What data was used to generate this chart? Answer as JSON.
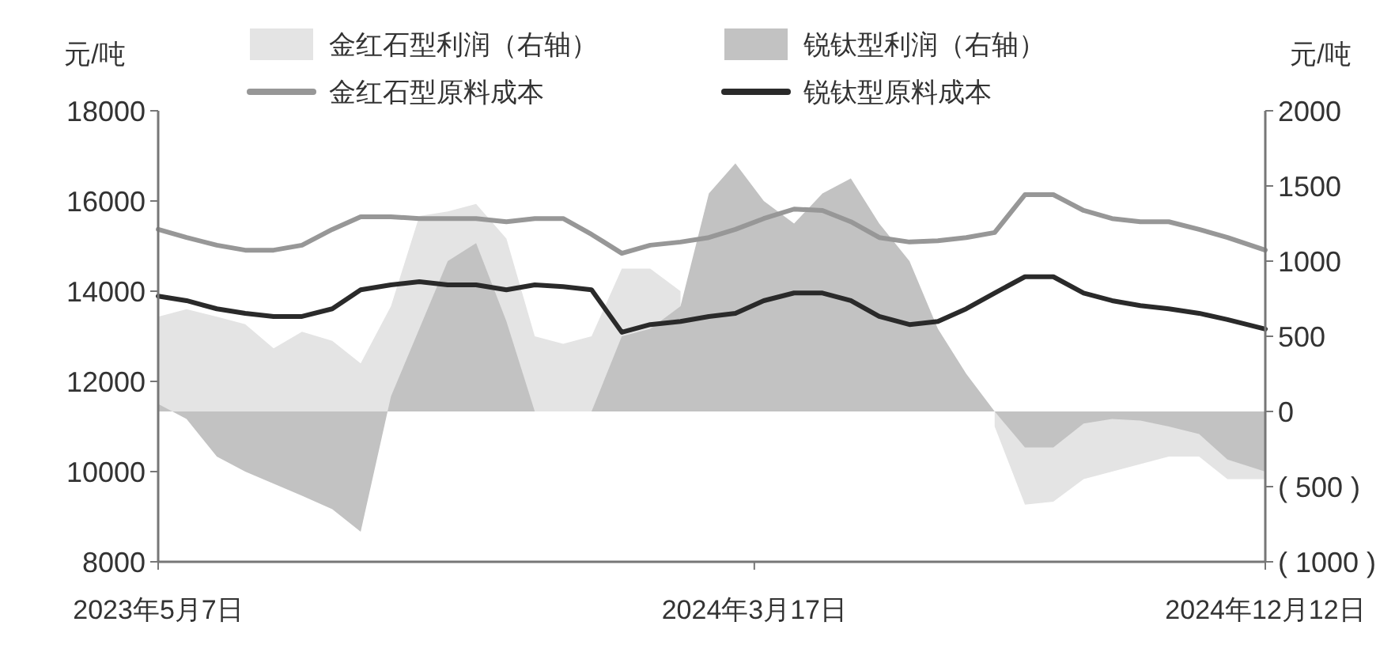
{
  "chart_data": {
    "type": "line",
    "ylabel": "元/吨",
    "y2label": "元/吨",
    "x": [
      "2023-05-07",
      "2023-05-22",
      "2023-06-07",
      "2023-06-22",
      "2023-07-07",
      "2023-07-22",
      "2023-08-07",
      "2023-08-22",
      "2023-09-07",
      "2023-09-22",
      "2023-10-07",
      "2023-10-22",
      "2023-11-07",
      "2023-11-22",
      "2023-12-07",
      "2023-12-22",
      "2024-01-07",
      "2024-01-22",
      "2024-02-07",
      "2024-02-22",
      "2024-03-07",
      "2024-03-22",
      "2024-04-07",
      "2024-04-22",
      "2024-05-07",
      "2024-05-22",
      "2024-06-07",
      "2024-06-22",
      "2024-07-07",
      "2024-07-22",
      "2024-08-07",
      "2024-08-22",
      "2024-09-07",
      "2024-09-22",
      "2024-10-07",
      "2024-10-22",
      "2024-11-07",
      "2024-11-22",
      "2024-12-12"
    ],
    "series": [
      {
        "name": "金红石型利润（右轴）",
        "type": "area",
        "axis": "y2",
        "color": "#e4e4e4",
        "values": [
          630,
          680,
          630,
          580,
          420,
          530,
          470,
          320,
          700,
          1300,
          1330,
          1380,
          1150,
          500,
          450,
          500,
          950,
          950,
          800,
          null,
          null,
          null,
          null,
          null,
          null,
          null,
          null,
          null,
          null,
          -100,
          -620,
          -600,
          -450,
          -400,
          -350,
          -300,
          -300,
          -450,
          -450
        ]
      },
      {
        "name": "锐钛型利润（右轴）",
        "type": "area",
        "axis": "y2",
        "color": "#c2c2c2",
        "values": [
          50,
          -50,
          -300,
          -400,
          -480,
          -560,
          -650,
          -800,
          100,
          550,
          1000,
          1120,
          600,
          0,
          0,
          0,
          500,
          550,
          700,
          1450,
          1650,
          1400,
          1250,
          1450,
          1550,
          1250,
          1000,
          550,
          250,
          0,
          -240,
          -240,
          -80,
          -50,
          -60,
          -100,
          -150,
          -320,
          -400
        ]
      },
      {
        "name": "金红石型原料成本",
        "color": "#979797",
        "values": [
          15370,
          15190,
          15020,
          14910,
          14910,
          15020,
          15370,
          15650,
          15650,
          15610,
          15610,
          15610,
          15540,
          15610,
          15610,
          15260,
          14840,
          15020,
          15090,
          15190,
          15370,
          15610,
          15820,
          15790,
          15540,
          15190,
          15090,
          15120,
          15190,
          15300,
          16140,
          16140,
          15790,
          15610,
          15540,
          15540,
          15370,
          15190,
          14910
        ]
      },
      {
        "name": "锐钛型原料成本",
        "color": "#2a2a2a",
        "values": [
          13890,
          13790,
          13610,
          13510,
          13440,
          13440,
          13610,
          14030,
          14140,
          14210,
          14140,
          14140,
          14030,
          14140,
          14100,
          14030,
          13090,
          13260,
          13330,
          13440,
          13510,
          13790,
          13960,
          13960,
          13790,
          13440,
          13260,
          13330,
          13610,
          13960,
          14320,
          14320,
          13960,
          13790,
          13680,
          13610,
          13510,
          13370,
          13160
        ]
      }
    ],
    "xlim": [
      "2023-05-07",
      "2024-12-12"
    ],
    "xticks": [
      {
        "value": "2023-05-07",
        "label": "2023年5月7日"
      },
      {
        "value": "2024-03-17",
        "label": "2024年3月17日"
      },
      {
        "value": "2024-12-12",
        "label": "2024年12月12日"
      }
    ],
    "ylim": [
      8000,
      18000
    ],
    "yticks": [
      8000,
      10000,
      12000,
      14000,
      16000,
      18000
    ],
    "y2lim": [
      -1000,
      2000
    ],
    "y2ticks": [
      {
        "value": -1000,
        "label": "( 1000 )"
      },
      {
        "value": -500,
        "label": "( 500 )"
      },
      0,
      500,
      1000,
      1500,
      2000
    ],
    "legend": "top",
    "grid": false
  }
}
